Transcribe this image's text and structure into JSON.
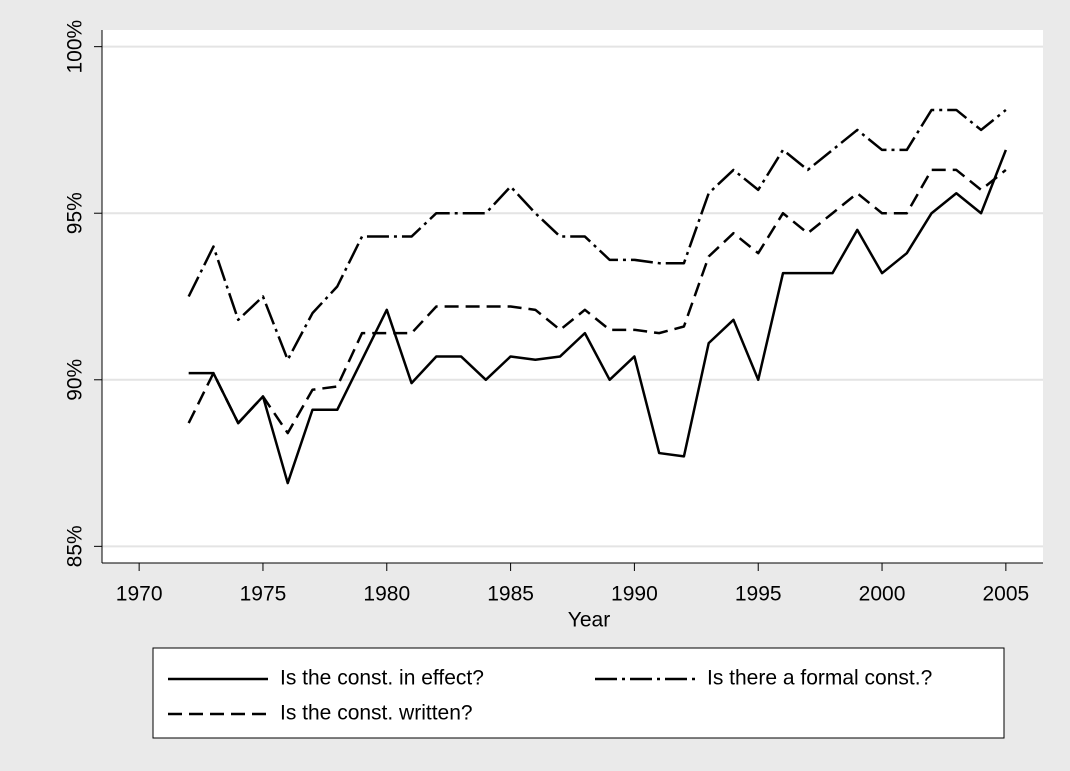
{
  "chart_data": {
    "type": "line",
    "x_label": "Year",
    "x": [
      1972,
      1973,
      1974,
      1975,
      1976,
      1977,
      1978,
      1979,
      1980,
      1981,
      1982,
      1983,
      1984,
      1985,
      1986,
      1987,
      1988,
      1989,
      1990,
      1991,
      1992,
      1993,
      1994,
      1995,
      1996,
      1997,
      1998,
      1999,
      2000,
      2001,
      2002,
      2003,
      2004,
      2005
    ],
    "series": [
      {
        "name": "Is the const. in effect?",
        "color": "#000000",
        "style": "solid",
        "values": [
          90.2,
          90.2,
          88.7,
          89.5,
          86.9,
          89.1,
          89.1,
          90.6,
          92.1,
          89.9,
          90.7,
          90.7,
          90.0,
          90.7,
          90.6,
          90.7,
          91.4,
          90.0,
          90.7,
          87.8,
          87.7,
          91.1,
          91.8,
          90.0,
          93.2,
          93.2,
          93.2,
          94.5,
          93.2,
          93.8,
          95.0,
          95.6,
          95.0,
          96.9
        ]
      },
      {
        "name": "Is there a formal const.?",
        "color": "#000000",
        "style": "dashdot",
        "values": [
          92.5,
          94.0,
          91.8,
          92.5,
          90.6,
          92.0,
          92.8,
          94.3,
          94.3,
          94.3,
          95.0,
          95.0,
          95.0,
          95.8,
          95.0,
          94.3,
          94.3,
          93.6,
          93.6,
          93.5,
          93.5,
          95.6,
          96.3,
          95.7,
          96.9,
          96.3,
          96.9,
          97.5,
          96.9,
          96.9,
          98.1,
          98.1,
          97.5,
          98.1
        ]
      },
      {
        "name": "Is the const. written?",
        "color": "#000000",
        "style": "dash",
        "values": [
          88.7,
          90.2,
          88.7,
          89.5,
          88.4,
          89.7,
          89.8,
          91.4,
          91.4,
          91.4,
          92.2,
          92.2,
          92.2,
          92.2,
          92.1,
          91.5,
          92.1,
          91.5,
          91.5,
          91.4,
          91.6,
          93.7,
          94.4,
          93.8,
          95.0,
          94.4,
          95.0,
          95.6,
          95.0,
          95.0,
          96.3,
          96.3,
          95.7,
          96.3
        ]
      }
    ],
    "xlim": [
      1968.5,
      2006.5
    ],
    "xticks": [
      1970,
      1975,
      1980,
      1985,
      1990,
      1995,
      2000,
      2005
    ],
    "ylim": [
      84.5,
      100.5
    ],
    "yticks": [
      {
        "value": 85,
        "label": "85%"
      },
      {
        "value": 90,
        "label": "90%"
      },
      {
        "value": 95,
        "label": "95%"
      },
      {
        "value": 100,
        "label": "100%"
      }
    ],
    "grid": true,
    "legend": "bottom"
  }
}
